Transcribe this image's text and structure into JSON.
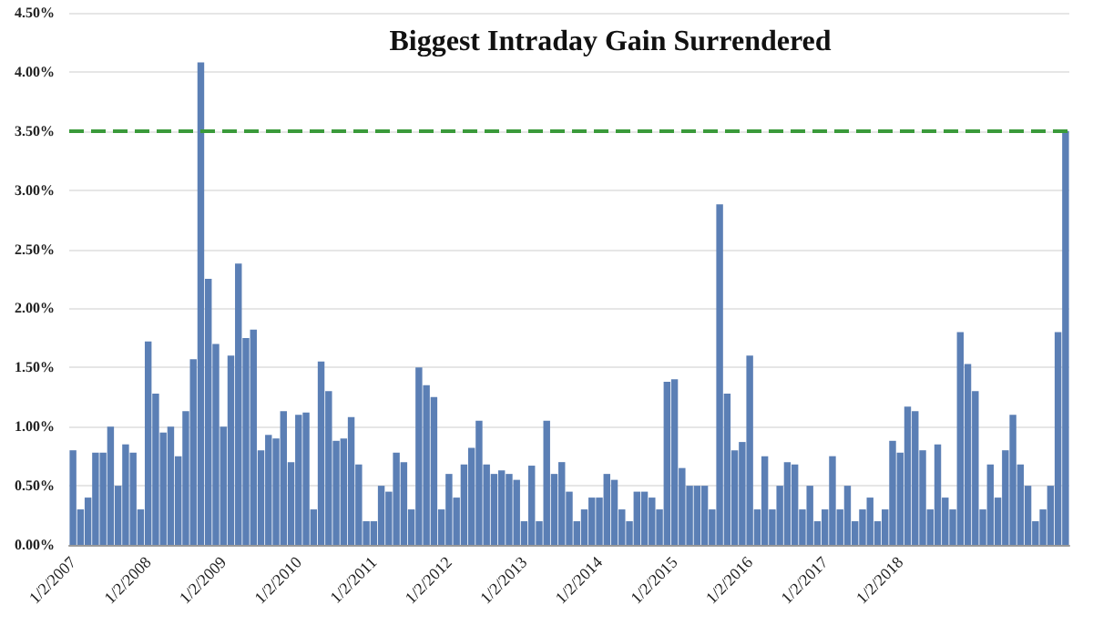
{
  "chart_data": {
    "type": "bar",
    "title": "Biggest Intraday Gain Surrendered",
    "categories": [
      "1/2/2007",
      null,
      null,
      null,
      null,
      null,
      null,
      null,
      null,
      null,
      "1/2/2008",
      null,
      null,
      null,
      null,
      null,
      null,
      null,
      null,
      null,
      "1/2/2009",
      null,
      null,
      null,
      null,
      null,
      null,
      null,
      null,
      null,
      "1/2/2010",
      null,
      null,
      null,
      null,
      null,
      null,
      null,
      null,
      null,
      "1/2/2011",
      null,
      null,
      null,
      null,
      null,
      null,
      null,
      null,
      null,
      "1/2/2012",
      null,
      null,
      null,
      null,
      null,
      null,
      null,
      null,
      null,
      "1/2/2013",
      null,
      null,
      null,
      null,
      null,
      null,
      null,
      null,
      null,
      "1/2/2014",
      null,
      null,
      null,
      null,
      null,
      null,
      null,
      null,
      null,
      "1/2/2015",
      null,
      null,
      null,
      null,
      null,
      null,
      null,
      null,
      null,
      "1/2/2016",
      null,
      null,
      null,
      null,
      null,
      null,
      null,
      null,
      null,
      "1/2/2017",
      null,
      null,
      null,
      null,
      null,
      null,
      null,
      null,
      null,
      "1/2/2018",
      null,
      null,
      null,
      null,
      null,
      null,
      null,
      null,
      null,
      null,
      null,
      null,
      null,
      null,
      null,
      null,
      null,
      null,
      null,
      null,
      null,
      null
    ],
    "values": [
      0.8,
      0.3,
      0.4,
      0.78,
      0.78,
      1.0,
      0.5,
      0.85,
      0.78,
      0.3,
      1.72,
      1.28,
      0.95,
      1.0,
      0.75,
      1.13,
      1.57,
      4.08,
      2.25,
      1.7,
      1.0,
      1.6,
      2.38,
      1.75,
      1.82,
      0.8,
      0.93,
      0.9,
      1.13,
      0.7,
      1.1,
      1.12,
      0.3,
      1.55,
      1.3,
      0.88,
      0.9,
      1.08,
      0.68,
      0.2,
      0.2,
      0.5,
      0.45,
      0.78,
      0.7,
      0.3,
      1.5,
      1.35,
      1.25,
      0.3,
      0.6,
      0.4,
      0.68,
      0.82,
      1.05,
      0.68,
      0.6,
      0.63,
      0.6,
      0.55,
      0.2,
      0.67,
      0.2,
      1.05,
      0.6,
      0.7,
      0.45,
      0.2,
      0.3,
      0.4,
      0.4,
      0.6,
      0.55,
      0.3,
      0.2,
      0.45,
      0.45,
      0.4,
      0.3,
      1.38,
      1.4,
      0.65,
      0.5,
      0.5,
      0.5,
      0.3,
      2.88,
      1.28,
      0.8,
      0.87,
      1.6,
      0.3,
      0.75,
      0.3,
      0.5,
      0.7,
      0.68,
      0.3,
      0.5,
      0.2,
      0.3,
      0.75,
      0.3,
      0.5,
      0.2,
      0.3,
      0.4,
      0.2,
      0.3,
      0.88,
      0.78,
      1.17,
      1.13,
      0.8,
      0.3,
      0.85,
      0.4,
      0.3,
      1.8,
      1.53,
      1.3,
      0.3,
      0.68,
      0.4,
      0.8,
      1.1,
      0.68,
      0.5,
      0.2,
      0.3,
      0.5,
      1.8,
      3.5
    ],
    "color": "#5b7fb5",
    "ylim": [
      0,
      4.5
    ],
    "yticks": [
      {
        "value": 0,
        "label": "0.00%"
      },
      {
        "value": 0.5,
        "label": "0.50%"
      },
      {
        "value": 1,
        "label": "1.00%"
      },
      {
        "value": 1.5,
        "label": "1.50%"
      },
      {
        "value": 2,
        "label": "2.00%"
      },
      {
        "value": 2.5,
        "label": "2.50%"
      },
      {
        "value": 3,
        "label": "3.00%"
      },
      {
        "value": 3.5,
        "label": "3.50%"
      },
      {
        "value": 4,
        "label": "4.00%"
      },
      {
        "value": 4.5,
        "label": "4.50%"
      }
    ],
    "ref_lines": [
      {
        "axis": "y",
        "value": 3.5,
        "color": "#3a9a3a",
        "line_style": "dashed"
      }
    ],
    "grid": "y"
  }
}
